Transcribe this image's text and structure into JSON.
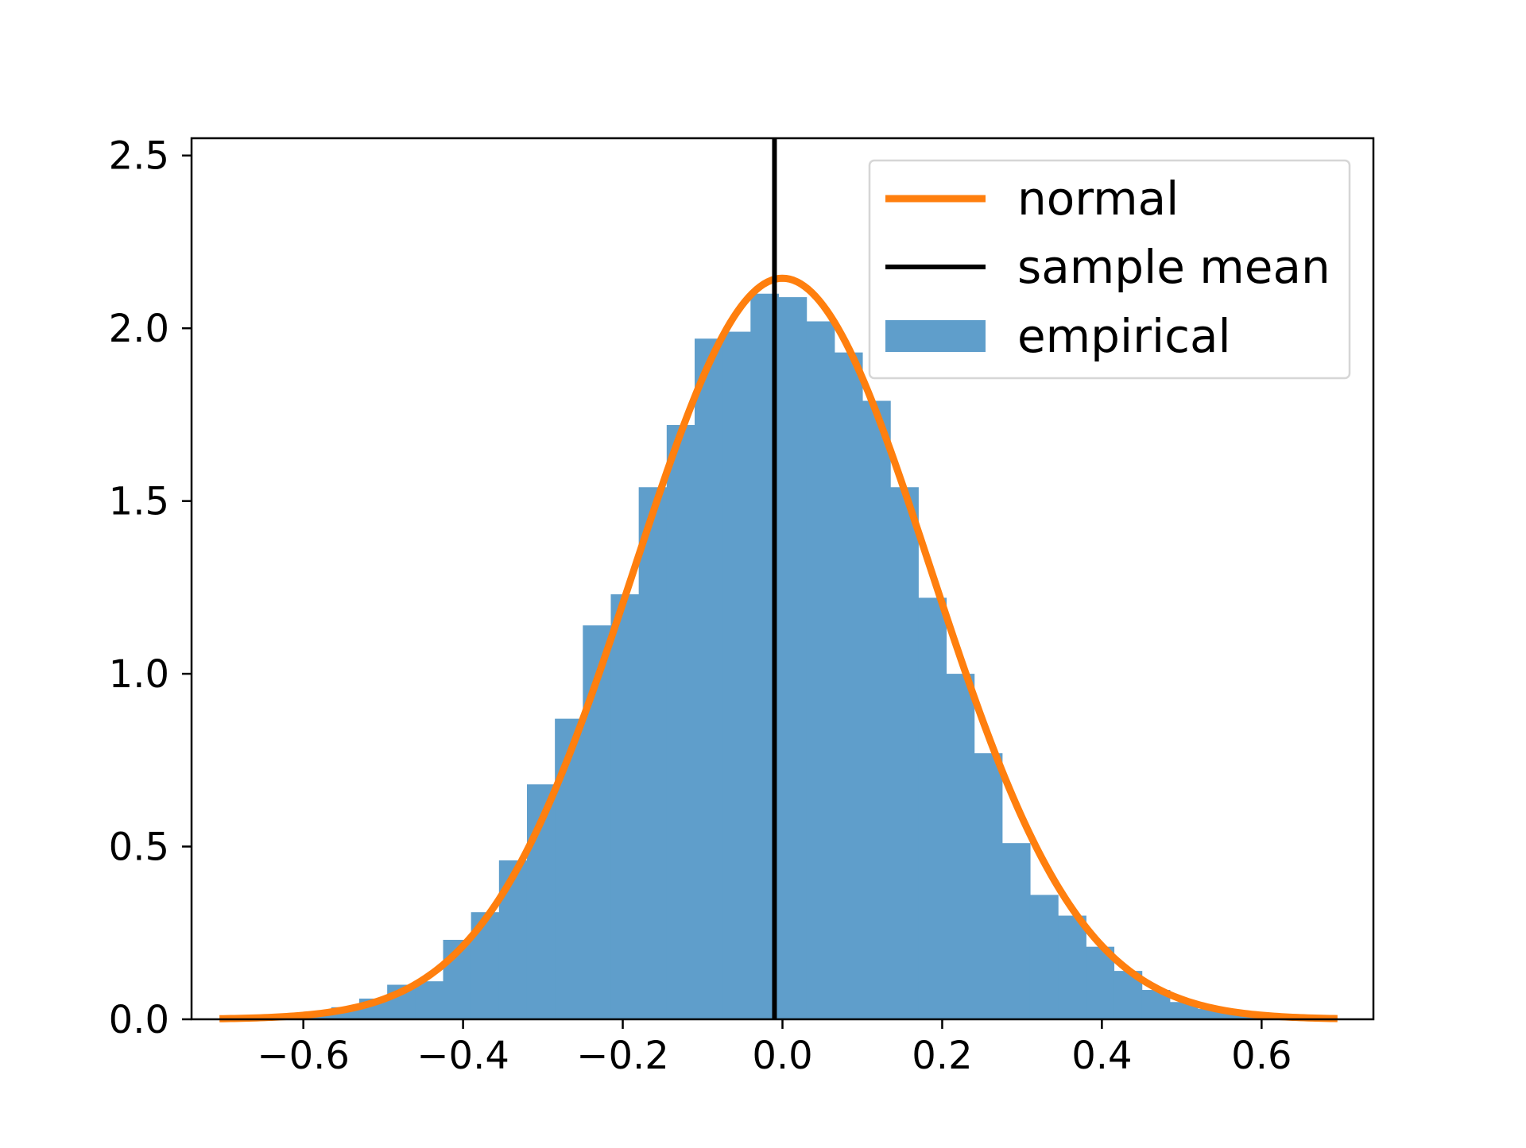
{
  "chart_data": {
    "type": "bar",
    "title": "",
    "xlabel": "",
    "ylabel": "",
    "xlim": [
      -0.74,
      0.74
    ],
    "ylim": [
      0,
      2.55
    ],
    "grid": false,
    "xticks": [
      -0.6,
      -0.4,
      -0.2,
      0.0,
      0.2,
      0.4,
      0.6
    ],
    "xtick_labels": [
      "−0.6",
      "−0.4",
      "−0.2",
      "0.0",
      "0.2",
      "0.4",
      "0.6"
    ],
    "yticks": [
      0.0,
      0.5,
      1.0,
      1.5,
      2.0,
      2.5
    ],
    "ytick_labels": [
      "0.0",
      "0.5",
      "1.0",
      "1.5",
      "2.0",
      "2.5"
    ],
    "legend_position": "top-right",
    "histogram": {
      "name": "empirical",
      "color": "#5f9ecb",
      "bin_width": 0.035,
      "bin_edges": [
        -0.705,
        -0.67,
        -0.635,
        -0.6,
        -0.565,
        -0.53,
        -0.495,
        -0.46,
        -0.425,
        -0.39,
        -0.355,
        -0.32,
        -0.285,
        -0.25,
        -0.215,
        -0.18,
        -0.145,
        -0.11,
        -0.075,
        -0.04,
        -0.005,
        0.03,
        0.065,
        0.1,
        0.135,
        0.17,
        0.205,
        0.24,
        0.275,
        0.31,
        0.345,
        0.38,
        0.415,
        0.45,
        0.485,
        0.52,
        0.555,
        0.59,
        0.625,
        0.66,
        0.695
      ],
      "densities": [
        0.003,
        0.005,
        0.01,
        0.02,
        0.035,
        0.06,
        0.1,
        0.11,
        0.23,
        0.31,
        0.46,
        0.68,
        0.87,
        1.14,
        1.23,
        1.54,
        1.72,
        1.97,
        1.99,
        2.1,
        2.09,
        2.02,
        1.93,
        1.79,
        1.54,
        1.22,
        1.0,
        0.77,
        0.51,
        0.36,
        0.3,
        0.21,
        0.14,
        0.085,
        0.05,
        0.03,
        0.018,
        0.01,
        0.005,
        0.003
      ]
    },
    "normal_curve": {
      "name": "normal",
      "color": "#ff7f0e",
      "mean": 0.0,
      "std": 0.186,
      "x_range": [
        -0.705,
        0.695
      ]
    },
    "sample_mean": {
      "name": "sample mean",
      "color": "#000000",
      "value": -0.01
    },
    "legend": [
      "normal",
      "sample mean",
      "empirical"
    ]
  }
}
